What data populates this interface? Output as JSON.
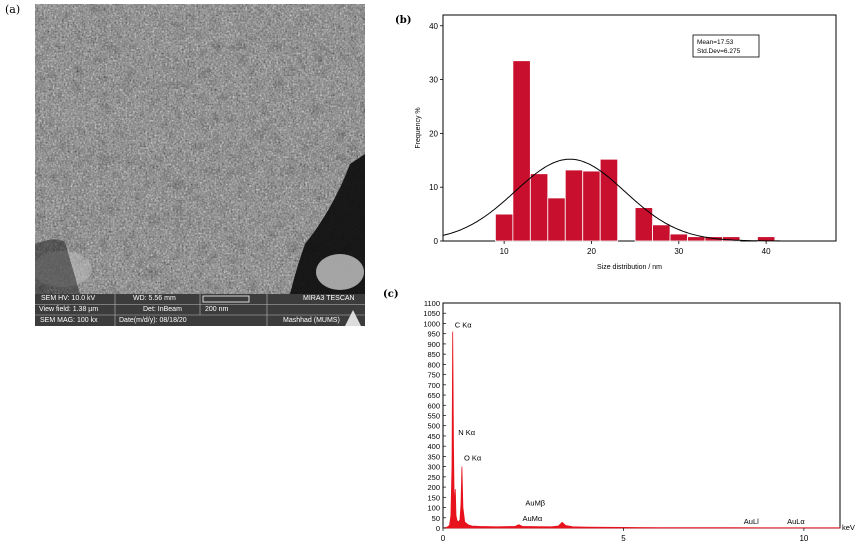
{
  "panels": {
    "a": {
      "label": "(a)"
    },
    "b": {
      "label": "(b)"
    },
    "c": {
      "label": "(c)"
    }
  },
  "sem_info": {
    "hv": "SEM HV: 10.0 kV",
    "wd": "WD: 5.56 mm",
    "brand": "MIRA3 TESCAN",
    "view_field": "View field: 1.38 µm",
    "detector": "Det: InBeam",
    "scale": "200 nm",
    "mag": "SEM MAG: 100 kx",
    "date": "Date(m/d/y): 08/18/20",
    "lab": "Mashhad (MUMS)"
  },
  "chart_data": [
    {
      "type": "bar",
      "ylabel": "Frequency %",
      "xlabel": "Size distribution / nm",
      "xlim": [
        3,
        48
      ],
      "ylim": [
        0,
        42
      ],
      "xticks": [
        10,
        20,
        30,
        40
      ],
      "yticks": [
        0,
        10,
        20,
        30,
        40
      ],
      "bin_width": 2,
      "bin_centers": [
        10,
        12,
        14,
        16,
        18,
        20,
        22,
        26,
        28,
        30,
        32,
        34,
        36,
        40
      ],
      "values": [
        5,
        33.5,
        12.5,
        8,
        13.2,
        13,
        15.2,
        6.2,
        3,
        1.3,
        0.8,
        0.8,
        0.8,
        0.8
      ],
      "bar_color": "#c8102e",
      "fit": {
        "type": "normal",
        "mean": 17.53,
        "std": 6.275,
        "peak": 15.2
      },
      "annotation": {
        "mean_text": "Mean=17.53",
        "std_text": "Std.Dev=6.275"
      }
    },
    {
      "type": "line",
      "xlabel": "keV",
      "xlim": [
        0,
        11
      ],
      "ylim": [
        0,
        1100
      ],
      "xticks": [
        0,
        5,
        10
      ],
      "yticks": [
        0,
        50,
        100,
        150,
        200,
        250,
        300,
        350,
        400,
        450,
        500,
        550,
        600,
        650,
        700,
        750,
        800,
        850,
        900,
        950,
        1000,
        1050,
        1100
      ],
      "series_color": "#e8121c",
      "spectrum": [
        [
          0.0,
          0
        ],
        [
          0.1,
          3
        ],
        [
          0.18,
          12
        ],
        [
          0.22,
          60
        ],
        [
          0.25,
          300
        ],
        [
          0.27,
          960
        ],
        [
          0.29,
          400
        ],
        [
          0.31,
          110
        ],
        [
          0.34,
          190
        ],
        [
          0.36,
          60
        ],
        [
          0.39,
          35
        ],
        [
          0.43,
          30
        ],
        [
          0.47,
          40
        ],
        [
          0.5,
          120
        ],
        [
          0.525,
          300
        ],
        [
          0.55,
          100
        ],
        [
          0.6,
          30
        ],
        [
          0.7,
          15
        ],
        [
          0.8,
          10
        ],
        [
          1.0,
          8
        ],
        [
          1.5,
          6
        ],
        [
          2.0,
          8
        ],
        [
          2.1,
          16
        ],
        [
          2.2,
          8
        ],
        [
          2.6,
          7
        ],
        [
          3.0,
          6
        ],
        [
          3.2,
          10
        ],
        [
          3.3,
          28
        ],
        [
          3.4,
          12
        ],
        [
          3.6,
          6
        ],
        [
          4.0,
          4
        ],
        [
          5.0,
          3
        ],
        [
          6.0,
          2
        ],
        [
          7.0,
          2
        ],
        [
          8.0,
          2
        ],
        [
          9.0,
          1
        ],
        [
          10.0,
          1
        ],
        [
          11.0,
          1
        ]
      ],
      "peak_labels": [
        {
          "text": "C Kα",
          "x": 0.27,
          "y": 960
        },
        {
          "text": "N Kα",
          "x": 0.34,
          "y": 440
        },
        {
          "text": "O Kα",
          "x": 0.525,
          "y": 320
        },
        {
          "text": "AuMβ",
          "x": 2.2,
          "y": 90
        },
        {
          "text": "AuMα",
          "x": 2.12,
          "y": 25
        },
        {
          "text": "AuLl",
          "x": 8.5,
          "y": 10
        },
        {
          "text": "AuLα",
          "x": 9.7,
          "y": 10
        }
      ]
    }
  ]
}
